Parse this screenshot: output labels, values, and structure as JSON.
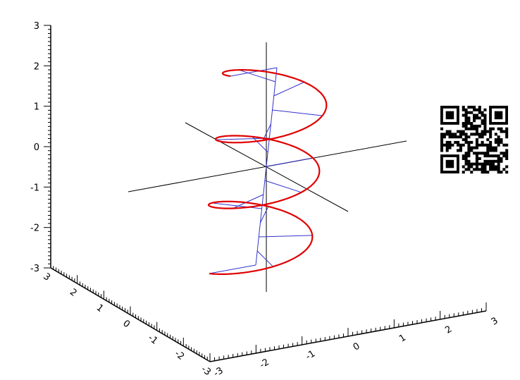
{
  "chart_data": {
    "type": "line",
    "projection": "3d",
    "colors": {
      "curve": "#e00000",
      "connectors": "#3333cc",
      "axes": "#000000",
      "background": "#ffffff"
    },
    "axes": {
      "x": {
        "range": [
          -3,
          3
        ],
        "ticks": [
          "-3",
          "-2",
          "-1",
          "0",
          "1",
          "2",
          "3"
        ]
      },
      "y": {
        "range": [
          -3,
          3
        ],
        "ticks": [
          "-3",
          "-2",
          "-1",
          "0",
          "1",
          "2",
          "3"
        ]
      },
      "z": {
        "range": [
          -3,
          3
        ],
        "ticks": [
          "-3",
          "-2",
          "-1",
          "0",
          "1",
          "2",
          "3"
        ]
      }
    },
    "grid": false,
    "legend": "none",
    "series": [
      {
        "kind": "helix",
        "radius": 1,
        "turns": 3,
        "t_range": [
          -2.5,
          2.5
        ]
      }
    ],
    "qr_code": "qr-code-image"
  }
}
